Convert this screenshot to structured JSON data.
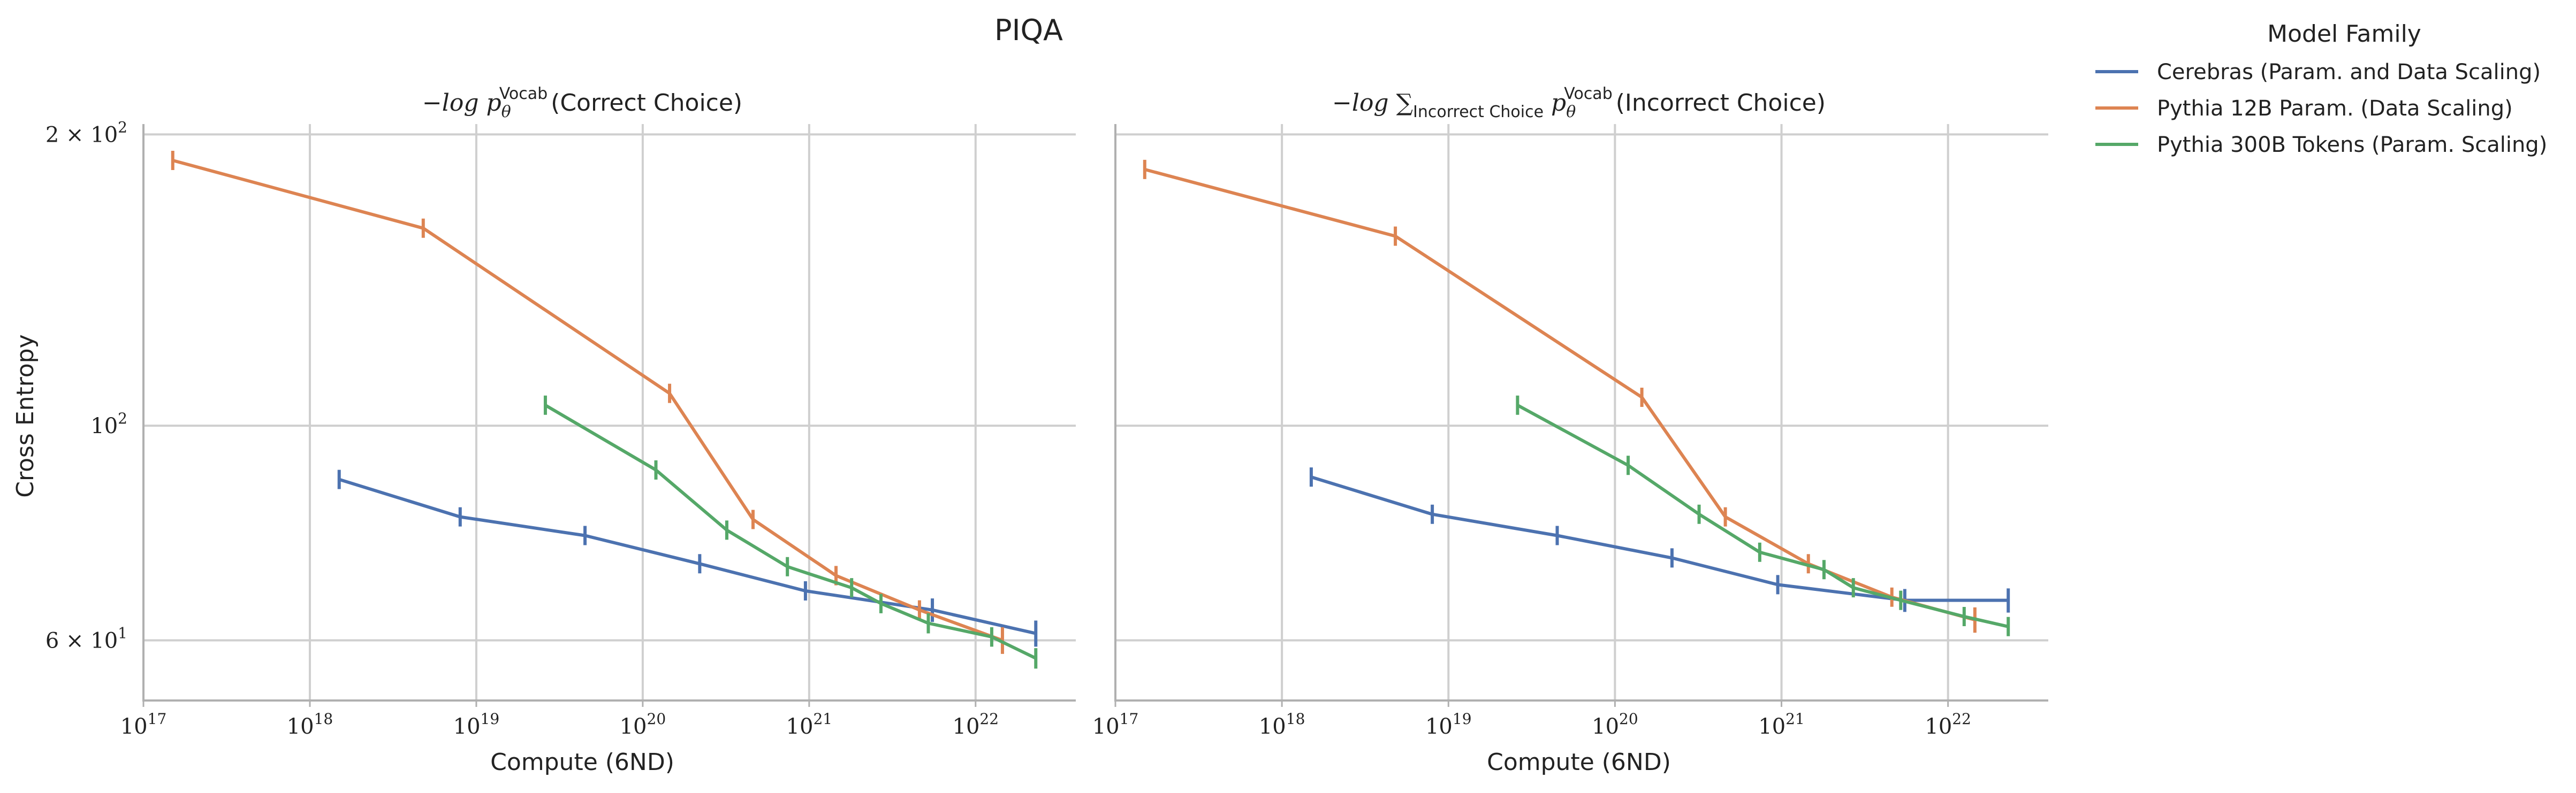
{
  "figure": {
    "suptitle": "PIQA",
    "legend": {
      "title": "Model Family",
      "placement": "upper-right outside",
      "entries": [
        {
          "label": "Cerebras (Param. and Data Scaling)",
          "color": "#4c72b0"
        },
        {
          "label": "Pythia 12B Param. (Data Scaling)",
          "color": "#dd8452"
        },
        {
          "label": "Pythia 300B Tokens (Param. Scaling)",
          "color": "#55a868"
        }
      ]
    }
  },
  "chart_data": [
    {
      "type": "line",
      "title_prefix": "−log p",
      "title_sub": "θ",
      "title_sup": "Vocab",
      "title_suffix": "(Correct Choice)",
      "xlabel": "Compute (6ND)",
      "ylabel": "Cross Entropy",
      "xscale": "log",
      "yscale": "log",
      "xlim": [
        1e+17,
        4e+22
      ],
      "ylim": [
        52,
        205
      ],
      "grid": true,
      "xticks": [
        {
          "value": 1e+17,
          "base": "10",
          "exp": "17"
        },
        {
          "value": 1e+18,
          "base": "10",
          "exp": "18"
        },
        {
          "value": 1e+19,
          "base": "10",
          "exp": "19"
        },
        {
          "value": 1e+20,
          "base": "10",
          "exp": "20"
        },
        {
          "value": 1e+21,
          "base": "10",
          "exp": "21"
        },
        {
          "value": 1e+22,
          "base": "10",
          "exp": "22"
        }
      ],
      "yticks": [
        {
          "value": 60,
          "base": "6 × 10",
          "exp": "1"
        },
        {
          "value": 100,
          "base": "10",
          "exp": "2"
        },
        {
          "value": 200,
          "base": "2 × 10",
          "exp": "2"
        }
      ],
      "series": [
        {
          "name": "Cerebras (Param. and Data Scaling)",
          "color": "#4c72b0",
          "x": [
            1.5e+18,
            8e+18,
            4.5e+19,
            2.2e+20,
            9.5e+20,
            5.5e+21,
            2.3e+22
          ],
          "y": [
            88,
            80.5,
            77,
            72,
            67.5,
            64.5,
            61
          ],
          "err": [
            1.8,
            1.7,
            1.6,
            1.5,
            1.4,
            1.8,
            1.9
          ]
        },
        {
          "name": "Pythia 12B Param. (Data Scaling)",
          "color": "#dd8452",
          "x": [
            1.5e+17,
            4.8e+18,
            1.45e+20,
            4.6e+20,
            1.45e+21,
            4.6e+21,
            1.45e+22
          ],
          "y": [
            188,
            160,
            108,
            80,
            70,
            64.5,
            60
          ],
          "err": [
            4,
            3.5,
            2.3,
            1.8,
            1.6,
            1.5,
            1.9
          ]
        },
        {
          "name": "Pythia 300B Tokens (Param. Scaling)",
          "color": "#55a868",
          "x": [
            2.6e+19,
            1.2e+20,
            3.2e+20,
            7.4e+20,
            1.8e+21,
            2.7e+21,
            5.2e+21,
            1.25e+22,
            2.3e+22
          ],
          "y": [
            105,
            90,
            78,
            71.5,
            68,
            65.5,
            62.5,
            60.5,
            57.5
          ],
          "err": [
            2.3,
            2,
            1.7,
            1.6,
            1.5,
            1.5,
            1.5,
            1.4,
            1.4
          ]
        }
      ]
    },
    {
      "type": "line",
      "title_prefix": "−log ∑",
      "title_sumsub": "Incorrect Choice",
      "title_p": " p",
      "title_sub": "θ",
      "title_sup": "Vocab",
      "title_suffix": "(Incorrect Choice)",
      "xlabel": "Compute (6ND)",
      "ylabel": "",
      "xscale": "log",
      "yscale": "log",
      "xlim": [
        1e+17,
        4e+22
      ],
      "ylim": [
        52,
        205
      ],
      "grid": true,
      "xticks": [
        {
          "value": 1e+17,
          "base": "10",
          "exp": "17"
        },
        {
          "value": 1e+18,
          "base": "10",
          "exp": "18"
        },
        {
          "value": 1e+19,
          "base": "10",
          "exp": "19"
        },
        {
          "value": 1e+20,
          "base": "10",
          "exp": "20"
        },
        {
          "value": 1e+21,
          "base": "10",
          "exp": "21"
        },
        {
          "value": 1e+22,
          "base": "10",
          "exp": "22"
        }
      ],
      "yticks": [],
      "series": [
        {
          "name": "Cerebras (Param. and Data Scaling)",
          "color": "#4c72b0",
          "x": [
            1.5e+18,
            8e+18,
            4.5e+19,
            2.2e+20,
            9.5e+20,
            5.5e+21,
            2.3e+22
          ],
          "y": [
            88.5,
            81,
            77,
            73,
            68.5,
            66,
            66
          ],
          "err": [
            1.8,
            1.7,
            1.6,
            1.5,
            1.4,
            1.8,
            1.9
          ]
        },
        {
          "name": "Pythia 12B Param. (Data Scaling)",
          "color": "#dd8452",
          "x": [
            1.5e+17,
            4.8e+18,
            1.45e+20,
            4.6e+20,
            1.45e+21,
            4.6e+21,
            1.45e+22
          ],
          "y": [
            184,
            157,
            107,
            80.5,
            72,
            66.5,
            63
          ],
          "err": [
            4,
            3.5,
            2.3,
            1.8,
            1.6,
            1.5,
            1.9
          ]
        },
        {
          "name": "Pythia 300B Tokens (Param. Scaling)",
          "color": "#55a868",
          "x": [
            2.6e+19,
            1.2e+20,
            3.2e+20,
            7.4e+20,
            1.8e+21,
            2.7e+21,
            5.2e+21,
            1.25e+22,
            2.3e+22
          ],
          "y": [
            105,
            91,
            81,
            74,
            71,
            68,
            66,
            63.5,
            62
          ],
          "err": [
            2.3,
            2,
            1.7,
            1.6,
            1.5,
            1.5,
            1.5,
            1.4,
            1.4
          ]
        }
      ]
    }
  ]
}
